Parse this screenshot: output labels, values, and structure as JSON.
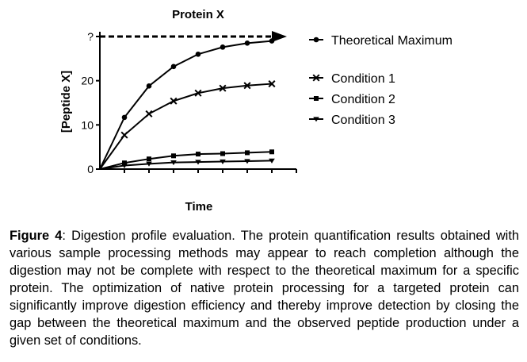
{
  "chart_data": {
    "type": "line",
    "title": "Protein X",
    "xlabel": "Time",
    "ylabel": "[Peptide X]",
    "ylim": [
      0,
      30
    ],
    "yticks": [
      {
        "value": 0,
        "label": "0"
      },
      {
        "value": 10,
        "label": "10"
      },
      {
        "value": 20,
        "label": "20"
      },
      {
        "value": 30,
        "label": "?"
      }
    ],
    "x": [
      0,
      1,
      2,
      3,
      4,
      5,
      6,
      7
    ],
    "xlim": [
      0,
      8
    ],
    "show_x_tick_labels": false,
    "grid": false,
    "legend_position": "right",
    "series": [
      {
        "name": "Theoretical Maximum",
        "marker": "circle",
        "values": [
          0,
          11.7,
          18.8,
          23.2,
          26.0,
          27.6,
          28.5,
          29.0
        ]
      },
      {
        "name": "Condition 1",
        "marker": "x",
        "values": [
          0,
          7.7,
          12.5,
          15.4,
          17.2,
          18.3,
          18.9,
          19.3
        ]
      },
      {
        "name": "Condition 2",
        "marker": "square",
        "values": [
          0,
          1.4,
          2.3,
          3.0,
          3.4,
          3.5,
          3.7,
          3.9
        ]
      },
      {
        "name": "Condition 3",
        "marker": "triangle-down",
        "values": [
          0,
          0.8,
          1.2,
          1.5,
          1.6,
          1.7,
          1.8,
          1.9
        ]
      }
    ],
    "annotations": [
      {
        "type": "dashed-arrow",
        "y": 30,
        "description": "dashed arrow at theoretical maximum level"
      }
    ]
  },
  "caption": {
    "label": "Figure 4",
    "text": ": Digestion profile evaluation. The protein quantification results obtained with various sample processing methods may appear to reach completion although the digestion may not be complete with respect to the theoretical maximum for a specific protein. The optimization of native protein processing for a targeted protein can significantly improve digestion efficiency and thereby improve detection by closing the gap between the theoretical maximum and the observed peptide production under a given set of conditions."
  }
}
